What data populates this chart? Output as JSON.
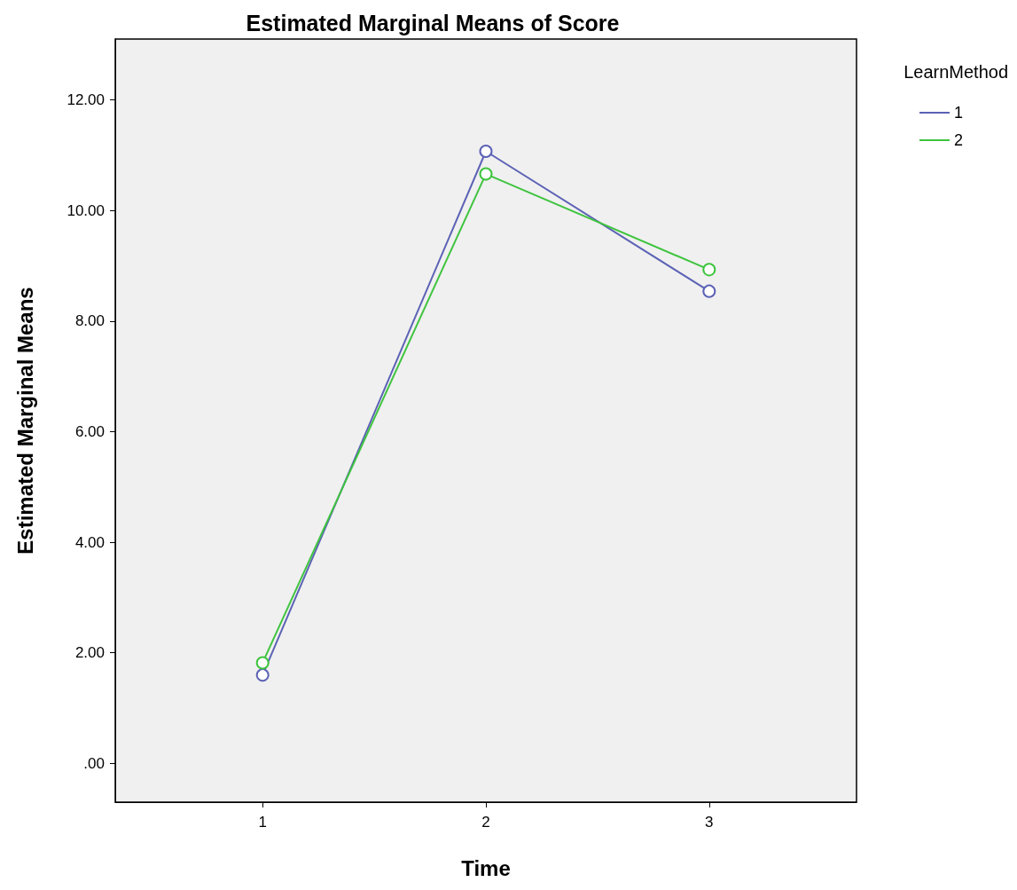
{
  "chart_data": {
    "type": "line",
    "title": "Estimated Marginal Means of Score",
    "xlabel": "Time",
    "ylabel": "Estimated Marginal Means",
    "legend_title": "LearnMethod",
    "legend": "top right",
    "marker": "circle",
    "grid": false,
    "x": [
      1,
      2,
      3
    ],
    "xlim": [
      0.34,
      3.66
    ],
    "xticks": [
      1,
      2,
      3
    ],
    "ylim": [
      -0.7,
      13.1
    ],
    "yticks": [
      {
        "value": 0,
        "label": ".00"
      },
      {
        "value": 2,
        "label": "2.00"
      },
      {
        "value": 4,
        "label": "4.00"
      },
      {
        "value": 6,
        "label": "6.00"
      },
      {
        "value": 8,
        "label": "8.00"
      },
      {
        "value": 10,
        "label": "10.00"
      },
      {
        "value": 12,
        "label": "12.00"
      }
    ],
    "series": [
      {
        "name": "1",
        "color": "#5c62b5",
        "values": [
          1.6,
          11.07,
          8.54
        ]
      },
      {
        "name": "2",
        "color": "#3fc43f",
        "values": [
          1.82,
          10.66,
          8.93
        ]
      }
    ]
  }
}
